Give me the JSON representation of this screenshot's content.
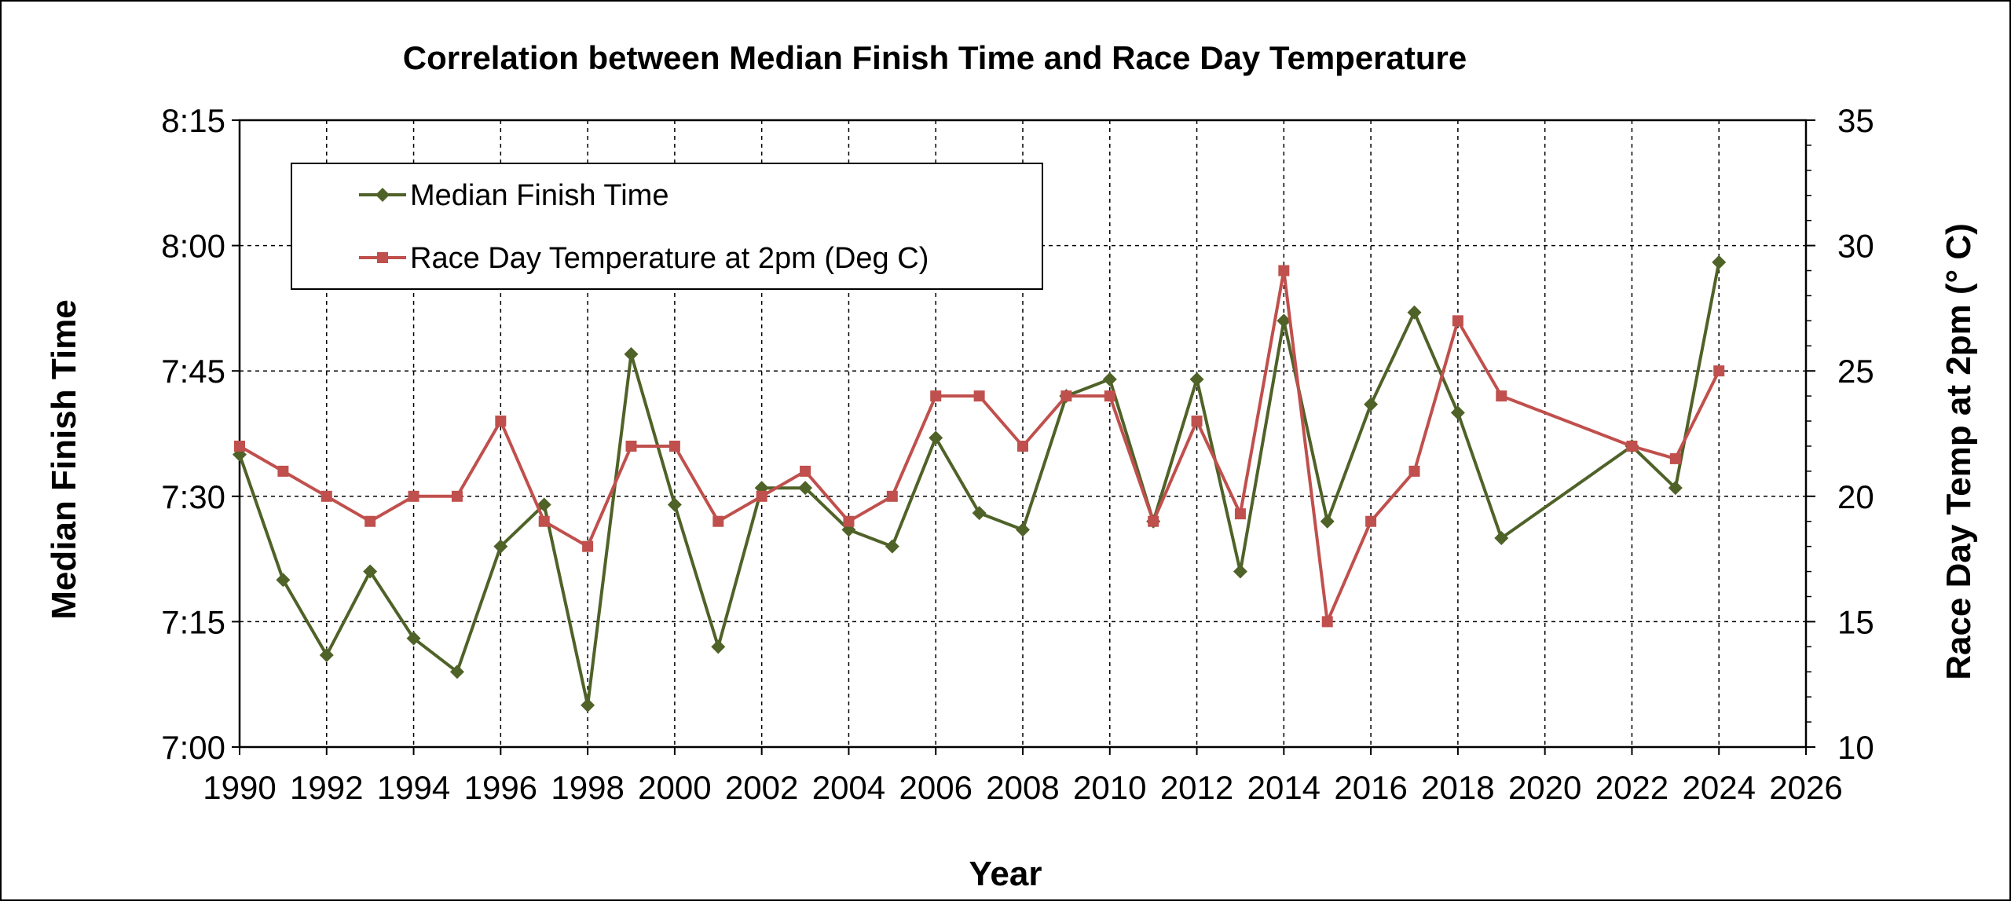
{
  "chart_data": {
    "type": "line",
    "title": "Correlation between Median Finish Time and  Race Day Temperature",
    "xlabel": "Year",
    "ylabel": "Median Finish Time",
    "y2label": "Race Day Temp at 2pm (° C)",
    "xlim": [
      1990,
      2026
    ],
    "xticks": [
      "1990",
      "1992",
      "1994",
      "1996",
      "1998",
      "2000",
      "2002",
      "2004",
      "2006",
      "2008",
      "2010",
      "2012",
      "2014",
      "2016",
      "2018",
      "2020",
      "2022",
      "2024",
      "2026"
    ],
    "ylim_minutes": [
      420,
      495
    ],
    "yticks": [
      "7:00",
      "7:15",
      "7:30",
      "7:45",
      "8:00",
      "8:15"
    ],
    "y2lim": [
      10,
      35
    ],
    "y2ticks": [
      "10",
      "15",
      "20",
      "25",
      "30",
      "35"
    ],
    "grid": true,
    "legend_position": "top-left",
    "series": [
      {
        "name": "Median Finish Time",
        "axis": "left",
        "color": "#4F6228",
        "marker": "diamond",
        "x": [
          1990,
          1991,
          1992,
          1993,
          1994,
          1995,
          1996,
          1997,
          1998,
          1999,
          2000,
          2001,
          2002,
          2003,
          2004,
          2005,
          2006,
          2007,
          2008,
          2009,
          2010,
          2011,
          2012,
          2013,
          2014,
          2015,
          2016,
          2017,
          2018,
          2019,
          2022,
          2023,
          2024
        ],
        "y_label": [
          "7:35",
          "7:20",
          "7:11",
          "7:21",
          "7:13",
          "7:09",
          "7:24",
          "7:29",
          "7:05",
          "7:47",
          "7:29",
          "7:12",
          "7:31",
          "7:31",
          "7:26",
          "7:24",
          "7:37",
          "7:28",
          "7:26",
          "7:42",
          "7:44",
          "7:27",
          "7:44",
          "7:21",
          "7:51",
          "7:27",
          "7:41",
          "7:52",
          "7:40",
          "7:25",
          "7:36",
          "7:31",
          "7:58"
        ],
        "y_minutes": [
          455,
          440,
          431,
          441,
          433,
          429,
          444,
          449,
          425,
          467,
          449,
          432,
          451,
          451,
          446,
          444,
          457,
          448,
          446,
          462,
          464,
          447,
          464,
          441,
          471,
          447,
          461,
          472,
          460,
          445,
          456,
          451,
          478
        ]
      },
      {
        "name": "Race Day Temperature at 2pm (Deg C)",
        "axis": "right",
        "color": "#C0504D",
        "marker": "square",
        "x": [
          1990,
          1991,
          1992,
          1993,
          1994,
          1995,
          1996,
          1997,
          1998,
          1999,
          2000,
          2001,
          2002,
          2003,
          2004,
          2005,
          2006,
          2007,
          2008,
          2009,
          2010,
          2011,
          2012,
          2013,
          2014,
          2015,
          2016,
          2017,
          2018,
          2019,
          2022,
          2023,
          2024
        ],
        "y": [
          22,
          21,
          20,
          19,
          20,
          20,
          23,
          19,
          18,
          22,
          22,
          19,
          20,
          21,
          19,
          20,
          24,
          24,
          22,
          24,
          24,
          19,
          23,
          19.3,
          29,
          15,
          19,
          21,
          27,
          24,
          22,
          21.5,
          25
        ]
      }
    ]
  }
}
